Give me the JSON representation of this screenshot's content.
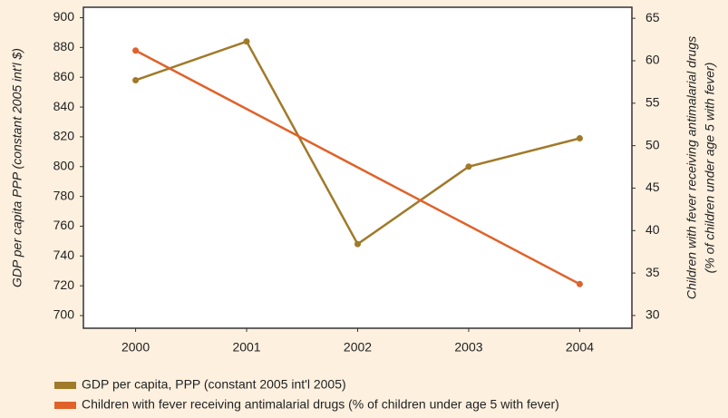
{
  "chart_data": {
    "type": "line",
    "y_label": "GDP per capita PPP  (constant 2005 int'l $)",
    "y2_label": [
      "Children with fever receiving antimalarial drugs",
      "(% of children under age 5 with fever)"
    ],
    "xlim": [
      1999.53,
      2004.47
    ],
    "xticks": [
      2000,
      2001,
      2002,
      2003,
      2004
    ],
    "ylim": [
      691.5,
      907
    ],
    "yticks": [
      700,
      720,
      740,
      760,
      780,
      800,
      820,
      840,
      860,
      880,
      900
    ],
    "y2lim": [
      28.5,
      66.3
    ],
    "y2ticks": [
      30,
      35,
      40,
      45,
      50,
      55,
      60,
      65
    ],
    "series": [
      {
        "name": "GDP per capita, PPP (constant 2005 int'l 2005)",
        "color": "#a07a2a",
        "axis": "y",
        "x": [
          2000,
          2001,
          2002,
          2003,
          2004
        ],
        "values": [
          858,
          884,
          748,
          800,
          819
        ]
      },
      {
        "name": "Children with fever receiving antimalarial drugs (% of children under age 5 with fever)",
        "color": "#e0622a",
        "axis": "y2",
        "x": [
          2000,
          2004
        ],
        "values": [
          61.2,
          33.7
        ]
      }
    ]
  }
}
